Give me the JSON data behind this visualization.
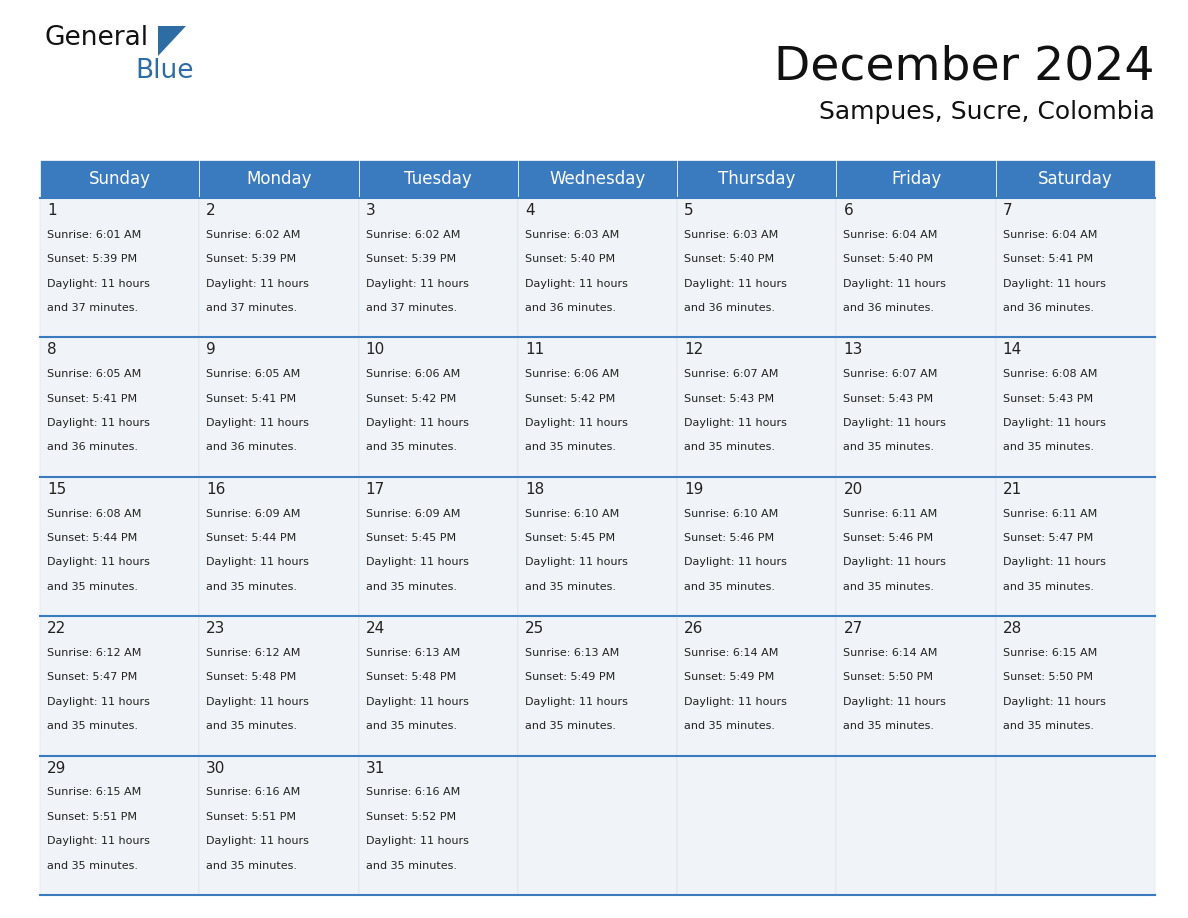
{
  "title": "December 2024",
  "subtitle": "Sampues, Sucre, Colombia",
  "header_bg_color": "#3a7abf",
  "header_text_color": "#ffffff",
  "cell_bg_even": "#f0f4f8",
  "cell_bg_odd": "#ffffff",
  "border_color": "#3a7abf",
  "separator_color": "#cccccc",
  "day_names": [
    "Sunday",
    "Monday",
    "Tuesday",
    "Wednesday",
    "Thursday",
    "Friday",
    "Saturday"
  ],
  "days": [
    {
      "day": 1,
      "col": 0,
      "row": 0,
      "sunrise": "6:01 AM",
      "sunset": "5:39 PM",
      "daylight": "11 hours and 37 minutes."
    },
    {
      "day": 2,
      "col": 1,
      "row": 0,
      "sunrise": "6:02 AM",
      "sunset": "5:39 PM",
      "daylight": "11 hours and 37 minutes."
    },
    {
      "day": 3,
      "col": 2,
      "row": 0,
      "sunrise": "6:02 AM",
      "sunset": "5:39 PM",
      "daylight": "11 hours and 37 minutes."
    },
    {
      "day": 4,
      "col": 3,
      "row": 0,
      "sunrise": "6:03 AM",
      "sunset": "5:40 PM",
      "daylight": "11 hours and 36 minutes."
    },
    {
      "day": 5,
      "col": 4,
      "row": 0,
      "sunrise": "6:03 AM",
      "sunset": "5:40 PM",
      "daylight": "11 hours and 36 minutes."
    },
    {
      "day": 6,
      "col": 5,
      "row": 0,
      "sunrise": "6:04 AM",
      "sunset": "5:40 PM",
      "daylight": "11 hours and 36 minutes."
    },
    {
      "day": 7,
      "col": 6,
      "row": 0,
      "sunrise": "6:04 AM",
      "sunset": "5:41 PM",
      "daylight": "11 hours and 36 minutes."
    },
    {
      "day": 8,
      "col": 0,
      "row": 1,
      "sunrise": "6:05 AM",
      "sunset": "5:41 PM",
      "daylight": "11 hours and 36 minutes."
    },
    {
      "day": 9,
      "col": 1,
      "row": 1,
      "sunrise": "6:05 AM",
      "sunset": "5:41 PM",
      "daylight": "11 hours and 36 minutes."
    },
    {
      "day": 10,
      "col": 2,
      "row": 1,
      "sunrise": "6:06 AM",
      "sunset": "5:42 PM",
      "daylight": "11 hours and 35 minutes."
    },
    {
      "day": 11,
      "col": 3,
      "row": 1,
      "sunrise": "6:06 AM",
      "sunset": "5:42 PM",
      "daylight": "11 hours and 35 minutes."
    },
    {
      "day": 12,
      "col": 4,
      "row": 1,
      "sunrise": "6:07 AM",
      "sunset": "5:43 PM",
      "daylight": "11 hours and 35 minutes."
    },
    {
      "day": 13,
      "col": 5,
      "row": 1,
      "sunrise": "6:07 AM",
      "sunset": "5:43 PM",
      "daylight": "11 hours and 35 minutes."
    },
    {
      "day": 14,
      "col": 6,
      "row": 1,
      "sunrise": "6:08 AM",
      "sunset": "5:43 PM",
      "daylight": "11 hours and 35 minutes."
    },
    {
      "day": 15,
      "col": 0,
      "row": 2,
      "sunrise": "6:08 AM",
      "sunset": "5:44 PM",
      "daylight": "11 hours and 35 minutes."
    },
    {
      "day": 16,
      "col": 1,
      "row": 2,
      "sunrise": "6:09 AM",
      "sunset": "5:44 PM",
      "daylight": "11 hours and 35 minutes."
    },
    {
      "day": 17,
      "col": 2,
      "row": 2,
      "sunrise": "6:09 AM",
      "sunset": "5:45 PM",
      "daylight": "11 hours and 35 minutes."
    },
    {
      "day": 18,
      "col": 3,
      "row": 2,
      "sunrise": "6:10 AM",
      "sunset": "5:45 PM",
      "daylight": "11 hours and 35 minutes."
    },
    {
      "day": 19,
      "col": 4,
      "row": 2,
      "sunrise": "6:10 AM",
      "sunset": "5:46 PM",
      "daylight": "11 hours and 35 minutes."
    },
    {
      "day": 20,
      "col": 5,
      "row": 2,
      "sunrise": "6:11 AM",
      "sunset": "5:46 PM",
      "daylight": "11 hours and 35 minutes."
    },
    {
      "day": 21,
      "col": 6,
      "row": 2,
      "sunrise": "6:11 AM",
      "sunset": "5:47 PM",
      "daylight": "11 hours and 35 minutes."
    },
    {
      "day": 22,
      "col": 0,
      "row": 3,
      "sunrise": "6:12 AM",
      "sunset": "5:47 PM",
      "daylight": "11 hours and 35 minutes."
    },
    {
      "day": 23,
      "col": 1,
      "row": 3,
      "sunrise": "6:12 AM",
      "sunset": "5:48 PM",
      "daylight": "11 hours and 35 minutes."
    },
    {
      "day": 24,
      "col": 2,
      "row": 3,
      "sunrise": "6:13 AM",
      "sunset": "5:48 PM",
      "daylight": "11 hours and 35 minutes."
    },
    {
      "day": 25,
      "col": 3,
      "row": 3,
      "sunrise": "6:13 AM",
      "sunset": "5:49 PM",
      "daylight": "11 hours and 35 minutes."
    },
    {
      "day": 26,
      "col": 4,
      "row": 3,
      "sunrise": "6:14 AM",
      "sunset": "5:49 PM",
      "daylight": "11 hours and 35 minutes."
    },
    {
      "day": 27,
      "col": 5,
      "row": 3,
      "sunrise": "6:14 AM",
      "sunset": "5:50 PM",
      "daylight": "11 hours and 35 minutes."
    },
    {
      "day": 28,
      "col": 6,
      "row": 3,
      "sunrise": "6:15 AM",
      "sunset": "5:50 PM",
      "daylight": "11 hours and 35 minutes."
    },
    {
      "day": 29,
      "col": 0,
      "row": 4,
      "sunrise": "6:15 AM",
      "sunset": "5:51 PM",
      "daylight": "11 hours and 35 minutes."
    },
    {
      "day": 30,
      "col": 1,
      "row": 4,
      "sunrise": "6:16 AM",
      "sunset": "5:51 PM",
      "daylight": "11 hours and 35 minutes."
    },
    {
      "day": 31,
      "col": 2,
      "row": 4,
      "sunrise": "6:16 AM",
      "sunset": "5:52 PM",
      "daylight": "11 hours and 35 minutes."
    }
  ],
  "logo_general_color": "#111111",
  "logo_blue_color": "#2e6da4",
  "title_fontsize": 34,
  "subtitle_fontsize": 18,
  "day_name_fontsize": 12,
  "day_num_fontsize": 11,
  "cell_text_fontsize": 8
}
